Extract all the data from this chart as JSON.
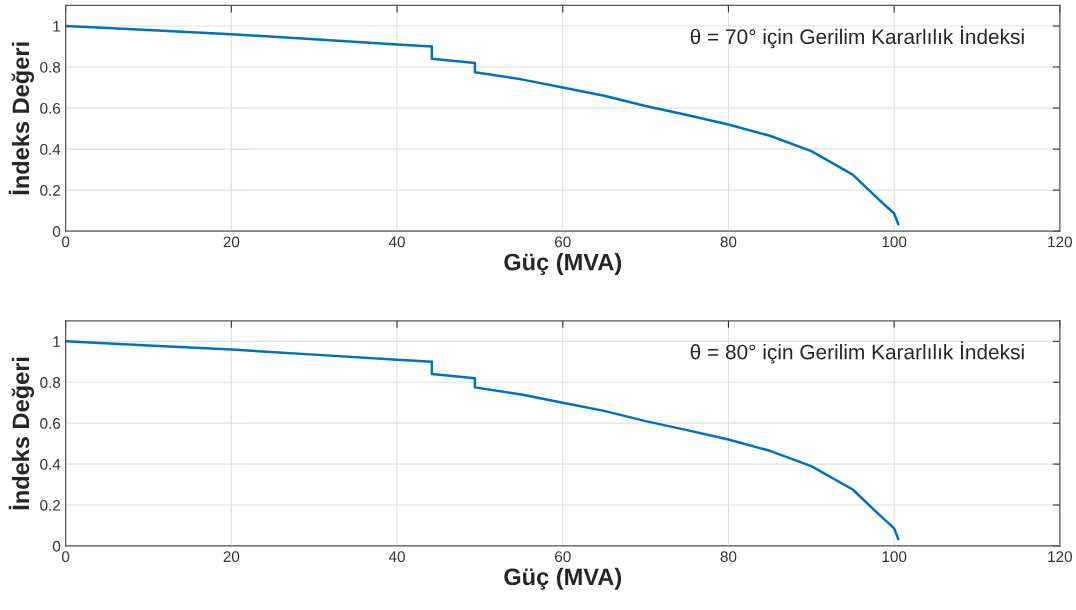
{
  "chart_data": [
    {
      "type": "line",
      "xlabel": "Güç (MVA)",
      "ylabel": "İndeks Değeri",
      "annotations": [
        "θ = 70° için Gerilim Kararlılık İndeksi"
      ],
      "xlim": [
        0,
        120
      ],
      "ylim": [
        0,
        1.1
      ],
      "xticks": [
        0,
        20,
        40,
        60,
        80,
        100,
        120
      ],
      "yticks": [
        0,
        0.2,
        0.4,
        0.6,
        0.8,
        1
      ],
      "grid": true,
      "legend": false,
      "series": [
        {
          "color": "#0072bd",
          "x": [
            0,
            10,
            20,
            30,
            40,
            44.2,
            44.2,
            49.4,
            49.4,
            55,
            60,
            65,
            70,
            75,
            80,
            85,
            90,
            95,
            98,
            100,
            100.5
          ],
          "values": [
            1.0,
            0.98,
            0.96,
            0.935,
            0.91,
            0.9,
            0.84,
            0.82,
            0.775,
            0.74,
            0.7,
            0.66,
            0.61,
            0.566,
            0.52,
            0.465,
            0.39,
            0.276,
            0.16,
            0.086,
            0.034
          ]
        }
      ]
    },
    {
      "type": "line",
      "xlabel": "Güç (MVA)",
      "ylabel": "İndeks Değeri",
      "annotations": [
        "θ = 80° için Gerilim Kararlılık İndeksi"
      ],
      "xlim": [
        0,
        120
      ],
      "ylim": [
        0,
        1.1
      ],
      "xticks": [
        0,
        20,
        40,
        60,
        80,
        100,
        120
      ],
      "yticks": [
        0,
        0.2,
        0.4,
        0.6,
        0.8,
        1
      ],
      "grid": true,
      "legend": false,
      "series": [
        {
          "color": "#0072bd",
          "x": [
            0,
            10,
            20,
            30,
            40,
            44.2,
            44.2,
            49.4,
            49.4,
            55,
            60,
            65,
            70,
            75,
            80,
            85,
            90,
            95,
            98,
            100,
            100.5
          ],
          "values": [
            1.0,
            0.98,
            0.96,
            0.935,
            0.91,
            0.9,
            0.84,
            0.82,
            0.775,
            0.74,
            0.7,
            0.66,
            0.61,
            0.566,
            0.52,
            0.465,
            0.39,
            0.276,
            0.16,
            0.086,
            0.034
          ]
        }
      ]
    }
  ]
}
